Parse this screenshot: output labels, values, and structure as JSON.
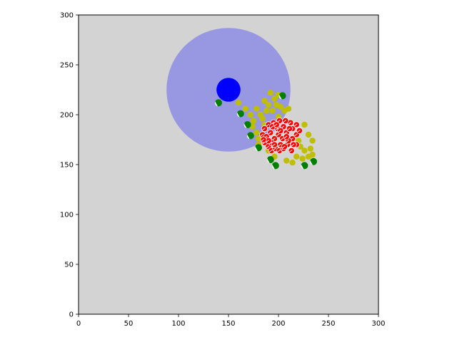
{
  "chart_data": {
    "type": "scatter",
    "title": "",
    "xlabel": "",
    "ylabel": "",
    "xlim": [
      0,
      300
    ],
    "ylim": [
      0,
      300
    ],
    "grid": false,
    "background_color": "#d3d3d3",
    "x_ticks": [
      0,
      50,
      100,
      150,
      200,
      250,
      300
    ],
    "y_ticks": [
      0,
      50,
      100,
      150,
      200,
      250,
      300
    ],
    "range_circle": {
      "center": [
        150,
        225
      ],
      "radius": 62,
      "color": "#9898e2"
    },
    "agent": {
      "center": [
        150,
        225
      ],
      "radius": 12,
      "color": "#0000ff"
    },
    "series": [
      {
        "marker": "yellow-dots",
        "color": "#bfbf00",
        "points": [
          [
            160,
            212
          ],
          [
            167,
            206
          ],
          [
            172,
            200
          ],
          [
            178,
            206
          ],
          [
            182,
            200
          ],
          [
            186,
            214
          ],
          [
            190,
            210
          ],
          [
            192,
            222
          ],
          [
            196,
            216
          ],
          [
            198,
            210
          ],
          [
            200,
            220
          ],
          [
            188,
            204
          ],
          [
            194,
            204
          ],
          [
            202,
            208
          ],
          [
            206,
            204
          ],
          [
            210,
            206
          ],
          [
            200,
            198
          ],
          [
            175,
            194
          ],
          [
            174,
            188
          ],
          [
            178,
            182
          ],
          [
            180,
            176
          ],
          [
            226,
            190
          ],
          [
            230,
            180
          ],
          [
            234,
            174
          ],
          [
            232,
            166
          ],
          [
            226,
            164
          ],
          [
            230,
            158
          ],
          [
            224,
            156
          ],
          [
            218,
            158
          ],
          [
            214,
            152
          ],
          [
            208,
            154
          ],
          [
            196,
            158
          ],
          [
            190,
            164
          ],
          [
            180,
            170
          ],
          [
            186,
            190
          ],
          [
            184,
            196
          ],
          [
            234,
            160
          ],
          [
            222,
            168
          ],
          [
            220,
            174
          ]
        ]
      },
      {
        "marker": "red-dots",
        "color": "#ff0000",
        "points": [
          [
            186,
            172
          ],
          [
            190,
            168
          ],
          [
            193,
            164
          ],
          [
            197,
            166
          ],
          [
            201,
            164
          ],
          [
            205,
            166
          ],
          [
            209,
            170
          ],
          [
            213,
            164
          ],
          [
            218,
            170
          ],
          [
            214,
            176
          ],
          [
            218,
            180
          ],
          [
            214,
            186
          ],
          [
            218,
            190
          ],
          [
            212,
            192
          ],
          [
            207,
            194
          ],
          [
            201,
            194
          ],
          [
            195,
            192
          ],
          [
            190,
            190
          ],
          [
            186,
            186
          ],
          [
            184,
            180
          ],
          [
            188,
            178
          ],
          [
            192,
            182
          ],
          [
            196,
            176
          ],
          [
            200,
            180
          ],
          [
            204,
            176
          ],
          [
            208,
            182
          ],
          [
            205,
            188
          ],
          [
            199,
            186
          ],
          [
            193,
            172
          ],
          [
            210,
            174
          ],
          [
            202,
            170
          ],
          [
            196,
            170
          ],
          [
            190,
            174
          ],
          [
            194,
            188
          ],
          [
            211,
            186
          ],
          [
            221,
            184
          ],
          [
            185,
            175
          ],
          [
            206,
            168
          ],
          [
            198,
            190
          ],
          [
            215,
            170
          ],
          [
            202,
            184
          ],
          [
            208,
            178
          ]
        ]
      },
      {
        "marker": "green-pie",
        "color": "#008000",
        "points": [
          [
            140,
            212
          ],
          [
            162,
            201
          ],
          [
            169,
            190
          ],
          [
            172,
            179
          ],
          [
            180,
            167
          ],
          [
            192,
            155
          ],
          [
            197,
            149
          ],
          [
            226,
            149
          ],
          [
            235,
            153
          ],
          [
            204,
            219
          ]
        ]
      }
    ]
  }
}
